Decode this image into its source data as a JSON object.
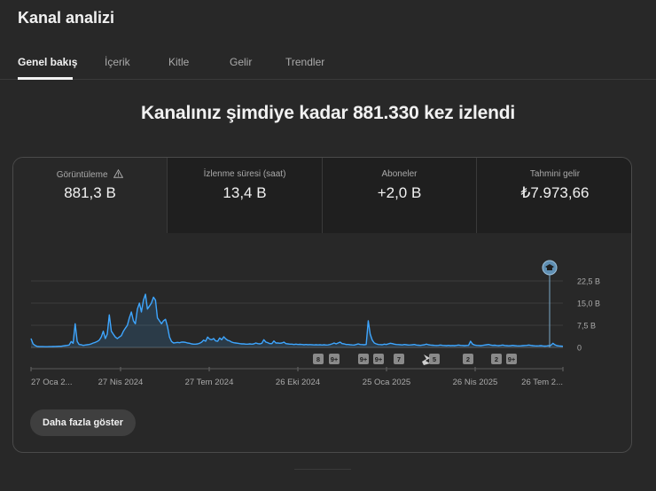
{
  "page": {
    "title": "Kanal analizi"
  },
  "tabs": [
    {
      "label": "Genel bakış",
      "active": true
    },
    {
      "label": "İçerik"
    },
    {
      "label": "Kitle"
    },
    {
      "label": "Gelir"
    },
    {
      "label": "Trendler"
    }
  ],
  "headline": "Kanalınız şimdiye kadar 881.330 kez izlendi",
  "metrics": [
    {
      "label": "Görüntüleme",
      "value": "881,3 B",
      "icon": "warning-icon"
    },
    {
      "label": "İzlenme süresi (saat)",
      "value": "13,4 B"
    },
    {
      "label": "Aboneler",
      "value": "+2,0 B"
    },
    {
      "label": "Tahmini gelir",
      "value": "₺7.973,66"
    }
  ],
  "colors": {
    "accent": "#3ea6ff",
    "background": "#282828",
    "card_alt": "#1f1f1f"
  },
  "chart_data": {
    "type": "area",
    "x_tick_labels": [
      "27 Oca 2...",
      "27 Nis 2024",
      "27 Tem 2024",
      "26 Eki 2024",
      "25 Oca 2025",
      "26 Nis 2025",
      "26 Tem 2..."
    ],
    "y_tick_labels": [
      "22,5 B",
      "15,0 B",
      "7,5 B",
      "0"
    ],
    "ylim": [
      0,
      22500
    ],
    "grid": true,
    "markers": [
      "8",
      "9+",
      "9+",
      "9+",
      "7",
      "5",
      "S",
      "2",
      "2",
      "9+",
      "2"
    ],
    "milestone_icon": "graduation-cap-icon",
    "series": [
      {
        "values": [
          3000,
          1200,
          700,
          350,
          300,
          280,
          260,
          250,
          240,
          260,
          280,
          300,
          320,
          350,
          380,
          400,
          500,
          600,
          700,
          800,
          2000,
          1400,
          8000,
          2000,
          1000,
          900,
          700,
          800,
          900,
          1000,
          1200,
          1500,
          1700,
          2000,
          2500,
          3500,
          5500,
          3000,
          4500,
          11000,
          5500,
          4500,
          3500,
          3000,
          3500,
          4000,
          5500,
          6500,
          7500,
          10000,
          12000,
          9000,
          8000,
          13000,
          15000,
          12000,
          16000,
          18000,
          13000,
          14000,
          15000,
          17000,
          16000,
          10000,
          9000,
          8000,
          9000,
          9500,
          7000,
          3500,
          2000,
          1500,
          1600,
          1700,
          1600,
          1800,
          1800,
          1700,
          1500,
          1400,
          1200,
          1100,
          1100,
          1200,
          1400,
          1800,
          2500,
          2100,
          3500,
          2800,
          2600,
          3000,
          2200,
          2100,
          3200,
          2600,
          3600,
          2900,
          2400,
          2200,
          1800,
          1600,
          1500,
          1400,
          1300,
          1200,
          1200,
          1100,
          1100,
          1200,
          1100,
          1200,
          1500,
          1300,
          1200,
          1400,
          2600,
          1800,
          1600,
          1300,
          1300,
          2200,
          1500,
          1500,
          1400,
          1500,
          1800,
          1300,
          1200,
          1100,
          1100,
          1000,
          1100,
          1000,
          1050,
          1000,
          900,
          1000,
          900,
          950,
          900,
          850,
          900,
          850,
          900,
          800,
          900,
          800,
          850,
          1000,
          1200,
          1500,
          1200,
          1500,
          1800,
          1300,
          1200,
          1000,
          1000,
          900,
          850,
          800,
          1000,
          1200,
          1000,
          950,
          900,
          1000,
          9000,
          4500,
          2500,
          1500,
          1200,
          1000,
          950,
          900,
          1100,
          1000,
          1200,
          1400,
          1300,
          1100,
          1000,
          950,
          900,
          850,
          1000,
          900,
          800,
          850,
          900,
          1000,
          800,
          750,
          700,
          800,
          900,
          1100,
          900,
          800,
          750,
          700,
          650,
          700,
          800,
          700,
          650,
          600,
          700,
          600,
          650,
          600,
          700,
          800,
          700,
          650,
          600,
          650,
          700,
          2100,
          1100,
          800,
          700,
          650,
          600,
          700,
          800,
          900,
          1000,
          800,
          700,
          750,
          650,
          600,
          700,
          800,
          650,
          600,
          550,
          600,
          700,
          600,
          550,
          500,
          550,
          600,
          650,
          700,
          800,
          700,
          600,
          550,
          500,
          550,
          600,
          500,
          450,
          500,
          600,
          700,
          1400,
          900,
          600,
          500,
          450,
          400
        ]
      }
    ]
  },
  "more_button": {
    "label": "Daha fazla göster"
  }
}
